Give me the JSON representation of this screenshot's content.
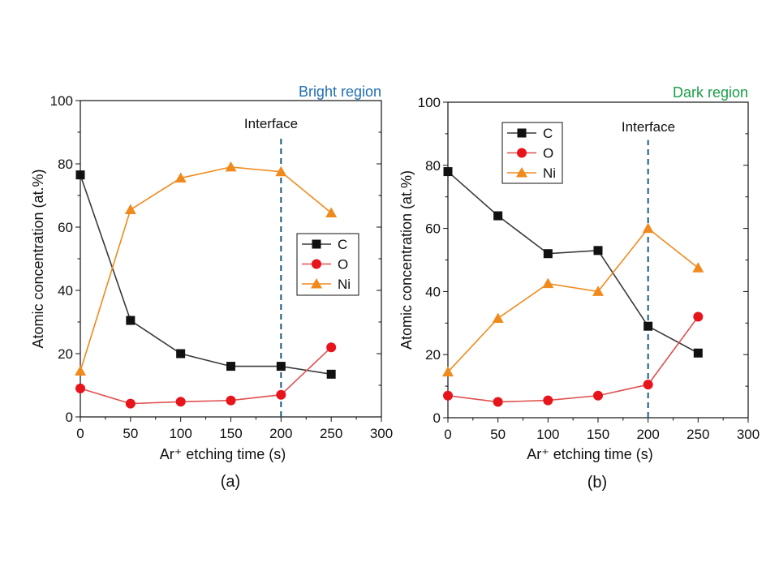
{
  "chart_data": [
    {
      "type": "line",
      "panel_label": "(a)",
      "region_title": "Bright region",
      "region_color": "#1f6fb5",
      "annotation": "Interface",
      "interface_x": 200,
      "xlabel": "Ar⁺ etching time (s)",
      "ylabel": "Atomic concentration (at.%)",
      "xlim": [
        0,
        300
      ],
      "ylim": [
        0,
        100
      ],
      "xticks": [
        0,
        50,
        100,
        150,
        200,
        250,
        300
      ],
      "yticks": [
        0,
        20,
        40,
        60,
        80,
        100
      ],
      "legend_position": "center-right",
      "x": [
        0,
        50,
        100,
        150,
        200,
        250
      ],
      "series": [
        {
          "name": "C",
          "color": "#111111",
          "line_color": "#3a3a3a",
          "marker": "square",
          "values": [
            76.5,
            30.5,
            20,
            16,
            16,
            13.5
          ]
        },
        {
          "name": "O",
          "color": "#e8141b",
          "line_color": "#e05050",
          "marker": "circle",
          "values": [
            9,
            4.2,
            4.8,
            5.2,
            7,
            22
          ]
        },
        {
          "name": "Ni",
          "color": "#f08a1c",
          "line_color": "#f08a1c",
          "marker": "triangle",
          "values": [
            14.5,
            65.5,
            75.5,
            79,
            77.5,
            64.5
          ]
        }
      ]
    },
    {
      "type": "line",
      "panel_label": "(b)",
      "region_title": "Dark region",
      "region_color": "#1a9e48",
      "annotation": "Interface",
      "interface_x": 200,
      "xlabel": "Ar⁺ etching time (s)",
      "ylabel": "Atomic concentration (at.%)",
      "xlim": [
        0,
        300
      ],
      "ylim": [
        0,
        100
      ],
      "xticks": [
        0,
        50,
        100,
        150,
        200,
        250,
        300
      ],
      "yticks": [
        0,
        20,
        40,
        60,
        80,
        100
      ],
      "legend_position": "top-left",
      "x": [
        0,
        50,
        100,
        150,
        200,
        250
      ],
      "series": [
        {
          "name": "C",
          "color": "#111111",
          "line_color": "#3a3a3a",
          "marker": "square",
          "values": [
            78,
            64,
            52,
            53,
            29,
            20.5
          ]
        },
        {
          "name": "O",
          "color": "#e8141b",
          "line_color": "#e05050",
          "marker": "circle",
          "values": [
            7,
            5,
            5.5,
            7,
            10.5,
            32
          ]
        },
        {
          "name": "Ni",
          "color": "#f08a1c",
          "line_color": "#f08a1c",
          "marker": "triangle",
          "values": [
            14.5,
            31.5,
            42.5,
            40,
            60,
            47.5
          ]
        }
      ]
    }
  ]
}
